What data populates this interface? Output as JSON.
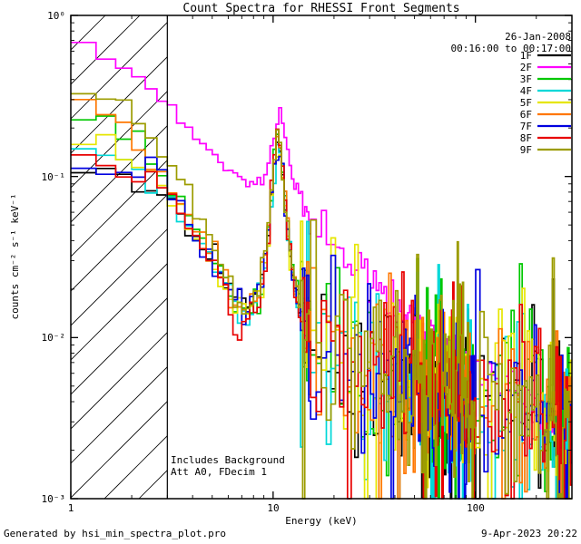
{
  "chart_data": {
    "type": "line",
    "mode": "histogram-step",
    "xscale": "log",
    "yscale": "log",
    "xlim": [
      1,
      300
    ],
    "ylim": [
      0.001,
      1
    ],
    "grid": false,
    "legend_position": "top-right",
    "title": "Count Spectra for RHESSI Front Segments",
    "xlabel": "Energy (keV)",
    "ylabel": "counts cm⁻² s⁻¹ keV⁻¹",
    "x_ticks": {
      "values": [
        1,
        10,
        100
      ],
      "labels": [
        "1",
        "10",
        "100"
      ]
    },
    "y_ticks": {
      "values": [
        0.001,
        0.01,
        0.1,
        1
      ],
      "labels": [
        "10⁻³",
        "10⁻²",
        "10⁻¹",
        "10⁰"
      ]
    },
    "excluded_region": {
      "xmin": 1,
      "xmax": 3,
      "style": "diagonal-hatch"
    },
    "bin_widths": [
      {
        "below": 15,
        "width": 0.3333
      },
      {
        "below": 100,
        "width": 1
      },
      {
        "below": 300,
        "width": 5
      }
    ],
    "series": [
      {
        "name": "1F",
        "color": "#000000",
        "seed": 17,
        "noise_lo": 0.05,
        "noise_hi": 0.28,
        "spike_prob": 0.04,
        "anchors_x": [
          1,
          1.5,
          2,
          2.5,
          3,
          4,
          5,
          6,
          6.6,
          7.5,
          8.5,
          9.3,
          10,
          10.6,
          11.2,
          12,
          13,
          15,
          20,
          30,
          50,
          80,
          120,
          200,
          300
        ],
        "anchors_y": [
          0.1,
          0.105,
          0.1,
          0.088,
          0.075,
          0.048,
          0.032,
          0.021,
          0.016,
          0.015,
          0.02,
          0.035,
          0.09,
          0.17,
          0.1,
          0.038,
          0.018,
          0.011,
          0.0078,
          0.006,
          0.005,
          0.0044,
          0.004,
          0.0036,
          0.003
        ]
      },
      {
        "name": "2F",
        "color": "#FF00FF",
        "seed": 23,
        "noise_lo": 0.02,
        "noise_hi": 0.07,
        "spike_prob": 0,
        "anchors_x": [
          1,
          1.3,
          1.6,
          2,
          2.5,
          3,
          3.5,
          4,
          5,
          6,
          7,
          8,
          9,
          9.6,
          10.2,
          10.7,
          11.2,
          12,
          13,
          15,
          20,
          30,
          40,
          60,
          80,
          100,
          150,
          200,
          300
        ],
        "anchors_y": [
          0.65,
          0.6,
          0.52,
          0.43,
          0.34,
          0.27,
          0.22,
          0.185,
          0.14,
          0.112,
          0.096,
          0.09,
          0.096,
          0.115,
          0.2,
          0.24,
          0.19,
          0.12,
          0.082,
          0.058,
          0.037,
          0.022,
          0.0155,
          0.0105,
          0.0082,
          0.0067,
          0.0046,
          0.0034,
          0.0022
        ]
      },
      {
        "name": "3F",
        "color": "#00C800",
        "seed": 31,
        "noise_lo": 0.05,
        "noise_hi": 0.28,
        "spike_prob": 0.04,
        "anchors_x": [
          1,
          1.4,
          1.8,
          2.3,
          3,
          4,
          5,
          6,
          6.6,
          7.5,
          8.5,
          9.3,
          10,
          10.6,
          11.2,
          12,
          13,
          15,
          20,
          30,
          50,
          80,
          120,
          200,
          300
        ],
        "anchors_y": [
          0.2,
          0.23,
          0.19,
          0.14,
          0.095,
          0.052,
          0.032,
          0.02,
          0.015,
          0.0145,
          0.019,
          0.034,
          0.1,
          0.185,
          0.11,
          0.04,
          0.019,
          0.0115,
          0.0082,
          0.0063,
          0.0051,
          0.0045,
          0.0041,
          0.0037,
          0.0031
        ]
      },
      {
        "name": "4F",
        "color": "#00D8D8",
        "seed": 47,
        "noise_lo": 0.05,
        "noise_hi": 0.28,
        "spike_prob": 0.04,
        "anchors_x": [
          1,
          1.5,
          2,
          2.5,
          3,
          4,
          5,
          6,
          6.6,
          7.5,
          8.5,
          9.3,
          10,
          10.6,
          11.2,
          12,
          13,
          15,
          20,
          30,
          50,
          80,
          120,
          200,
          300
        ],
        "anchors_y": [
          0.125,
          0.155,
          0.13,
          0.105,
          0.08,
          0.046,
          0.029,
          0.019,
          0.0145,
          0.014,
          0.0185,
          0.032,
          0.092,
          0.165,
          0.095,
          0.036,
          0.0175,
          0.0108,
          0.0077,
          0.0059,
          0.0048,
          0.0042,
          0.0039,
          0.0034,
          0.0028
        ]
      },
      {
        "name": "5F",
        "color": "#E6E600",
        "seed": 59,
        "noise_lo": 0.05,
        "noise_hi": 0.28,
        "spike_prob": 0.04,
        "anchors_x": [
          1,
          1.4,
          1.9,
          2.4,
          3,
          4,
          5,
          6,
          6.6,
          7.5,
          8.5,
          9.3,
          10,
          10.6,
          11.2,
          12,
          13,
          15,
          20,
          30,
          50,
          80,
          120,
          200,
          300
        ],
        "anchors_y": [
          0.185,
          0.17,
          0.145,
          0.11,
          0.085,
          0.049,
          0.03,
          0.0195,
          0.0148,
          0.0142,
          0.0188,
          0.033,
          0.098,
          0.175,
          0.1,
          0.038,
          0.018,
          0.0112,
          0.008,
          0.0061,
          0.0049,
          0.0043,
          0.004,
          0.0035,
          0.0029
        ]
      },
      {
        "name": "6F",
        "color": "#FF7700",
        "seed": 71,
        "noise_lo": 0.05,
        "noise_hi": 0.28,
        "spike_prob": 0.04,
        "anchors_x": [
          1,
          1.25,
          1.6,
          2,
          2.5,
          3,
          4,
          5,
          6,
          6.6,
          7.5,
          8.5,
          9.3,
          10,
          10.6,
          11.2,
          12,
          13,
          15,
          20,
          30,
          50,
          80,
          120,
          200,
          300
        ],
        "anchors_y": [
          0.26,
          0.3,
          0.24,
          0.18,
          0.13,
          0.1,
          0.055,
          0.033,
          0.0205,
          0.0152,
          0.0147,
          0.0192,
          0.035,
          0.105,
          0.19,
          0.115,
          0.041,
          0.0195,
          0.0118,
          0.0084,
          0.0064,
          0.0052,
          0.0045,
          0.0041,
          0.0037,
          0.0031
        ]
      },
      {
        "name": "7F",
        "color": "#0000E0",
        "seed": 83,
        "noise_lo": 0.05,
        "noise_hi": 0.28,
        "spike_prob": 0.04,
        "anchors_x": [
          1,
          1.6,
          2.2,
          2.8,
          3.3,
          4,
          5,
          6,
          6.8,
          7.8,
          8.8,
          9.6,
          10.3,
          10.9,
          11.6,
          12.5,
          13.5,
          15,
          20,
          30,
          50,
          80,
          120,
          200,
          300
        ],
        "anchors_y": [
          0.112,
          0.115,
          0.112,
          0.105,
          0.075,
          0.05,
          0.031,
          0.0205,
          0.0155,
          0.0152,
          0.021,
          0.045,
          0.155,
          0.135,
          0.055,
          0.024,
          0.0155,
          0.0112,
          0.008,
          0.0061,
          0.0049,
          0.0043,
          0.0039,
          0.0035,
          0.0029
        ]
      },
      {
        "name": "8F",
        "color": "#E80000",
        "seed": 97,
        "noise_lo": 0.05,
        "noise_hi": 0.28,
        "spike_prob": 0.04,
        "anchors_x": [
          1,
          1.5,
          2,
          2.5,
          3,
          4,
          5,
          5.8,
          6.4,
          7,
          7.8,
          8.8,
          9.4,
          10,
          10.5,
          11,
          11.8,
          12.8,
          14,
          16,
          20,
          30,
          50,
          80,
          120,
          200,
          300
        ],
        "anchors_y": [
          0.138,
          0.125,
          0.115,
          0.1,
          0.082,
          0.048,
          0.029,
          0.019,
          0.0092,
          0.0135,
          0.0148,
          0.0195,
          0.034,
          0.1,
          0.2,
          0.145,
          0.045,
          0.019,
          0.0115,
          0.0095,
          0.0078,
          0.0059,
          0.0048,
          0.0042,
          0.0038,
          0.0034,
          0.0028
        ]
      },
      {
        "name": "9F",
        "color": "#9C9C00",
        "seed": 113,
        "noise_lo": 0.05,
        "noise_hi": 0.28,
        "spike_prob": 0.04,
        "anchors_x": [
          1,
          1.3,
          1.7,
          2.2,
          2.8,
          3.4,
          4,
          5,
          6,
          6.6,
          7.5,
          8.5,
          9.3,
          10,
          10.6,
          11.2,
          12,
          13,
          15,
          20,
          30,
          50,
          80,
          120,
          200,
          300
        ],
        "anchors_y": [
          0.3,
          0.36,
          0.3,
          0.21,
          0.145,
          0.105,
          0.068,
          0.039,
          0.0235,
          0.0165,
          0.0158,
          0.0205,
          0.037,
          0.115,
          0.2,
          0.12,
          0.043,
          0.021,
          0.0125,
          0.0088,
          0.0067,
          0.0054,
          0.0046,
          0.0042,
          0.0038,
          0.0032
        ]
      }
    ]
  },
  "annotations": {
    "date": "26-Jan-2008",
    "time_range": "00:16:00 to 00:17:00",
    "note_line1": "Includes Background",
    "note_line2": "Att A0, FDecim 1"
  },
  "footer": {
    "left": "Generated by hsi_min_spectra_plot.pro",
    "right": "9-Apr-2023 20:22"
  }
}
